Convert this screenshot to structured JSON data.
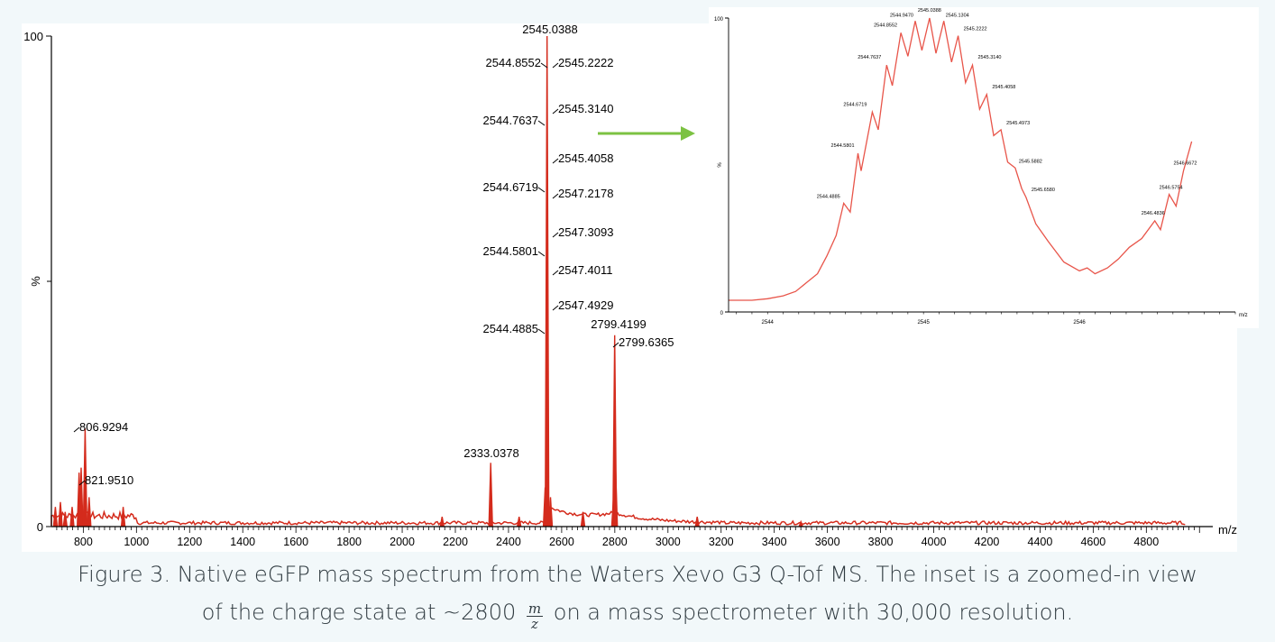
{
  "chart_data": [
    {
      "type": "line",
      "xlabel": "m/z",
      "ylabel": "%",
      "xlim": [
        680,
        5050
      ],
      "ylim": [
        0,
        100
      ],
      "xticks": [
        800,
        1000,
        1200,
        1400,
        1600,
        1800,
        2000,
        2200,
        2400,
        2600,
        2800,
        3000,
        3200,
        3400,
        3600,
        3800,
        4000,
        4200,
        4400,
        4600,
        4800
      ],
      "yticks": [
        0,
        100
      ],
      "color": "#d42b1c",
      "peaks": [
        {
          "x": 695,
          "y": 4
        },
        {
          "x": 714,
          "y": 5
        },
        {
          "x": 732,
          "y": 3
        },
        {
          "x": 758,
          "y": 4
        },
        {
          "x": 784,
          "y": 11
        },
        {
          "x": 792,
          "y": 12
        },
        {
          "x": 806.9294,
          "y": 20
        },
        {
          "x": 821.951,
          "y": 6
        },
        {
          "x": 950,
          "y": 4
        },
        {
          "x": 2150,
          "y": 2
        },
        {
          "x": 2333.0378,
          "y": 13
        },
        {
          "x": 2440,
          "y": 2
        },
        {
          "x": 2538,
          "y": 8
        },
        {
          "x": 2545.0388,
          "y": 100
        },
        {
          "x": 2558,
          "y": 6
        },
        {
          "x": 2680,
          "y": 3
        },
        {
          "x": 2795,
          "y": 6
        },
        {
          "x": 2799.4199,
          "y": 39
        },
        {
          "x": 2803,
          "y": 12
        },
        {
          "x": 3110,
          "y": 2
        },
        {
          "x": 3500,
          "y": 1
        }
      ],
      "peak_labels": [
        {
          "text": "806.9294",
          "x": 806.9294,
          "y": 20
        },
        {
          "text": "821.9510",
          "x": 821.951,
          "y": 6
        },
        {
          "text": "2333.0378",
          "x": 2333.0378,
          "y": 13
        },
        {
          "text": "2545.0388",
          "x": 2545.0388,
          "y": 100
        },
        {
          "text": "2544.8552",
          "x": 2545.0388,
          "y": 95
        },
        {
          "text": "2545.2222",
          "x": 2545.0388,
          "y": 95
        },
        {
          "text": "2544.7637",
          "x": 2545.0388,
          "y": 83
        },
        {
          "text": "2545.3140",
          "x": 2545.0388,
          "y": 85
        },
        {
          "text": "2545.4058",
          "x": 2545.0388,
          "y": 75
        },
        {
          "text": "2544.6719",
          "x": 2545.0388,
          "y": 70
        },
        {
          "text": "2547.2178",
          "x": 2545.0388,
          "y": 68
        },
        {
          "text": "2547.3093",
          "x": 2545.0388,
          "y": 61
        },
        {
          "text": "2544.5801",
          "x": 2545.0388,
          "y": 56
        },
        {
          "text": "2547.4011",
          "x": 2545.0388,
          "y": 52
        },
        {
          "text": "2547.4929",
          "x": 2545.0388,
          "y": 44
        },
        {
          "text": "2544.4885",
          "x": 2545.0388,
          "y": 40
        },
        {
          "text": "2799.4199",
          "x": 2799.4199,
          "y": 39
        },
        {
          "text": "2799.6365",
          "x": 2799.4199,
          "y": 39
        }
      ]
    },
    {
      "type": "line",
      "xlabel": "m/z",
      "ylabel": "%",
      "xlim": [
        2543.75,
        2547.0
      ],
      "ylim": [
        0,
        100
      ],
      "xticks": [
        2544,
        2545,
        2546
      ],
      "yticks": [
        0,
        100
      ],
      "color": "#e8554a",
      "x": [
        2543.75,
        2543.9,
        2544.0,
        2544.1,
        2544.18,
        2544.25,
        2544.32,
        2544.38,
        2544.44,
        2544.4885,
        2544.53,
        2544.58,
        2544.6,
        2544.6719,
        2544.71,
        2544.7637,
        2544.8,
        2544.8552,
        2544.9,
        2544.947,
        2544.99,
        2545.0388,
        2545.08,
        2545.1304,
        2545.18,
        2545.2222,
        2545.27,
        2545.314,
        2545.36,
        2545.4058,
        2545.45,
        2545.4973,
        2545.54,
        2545.5882,
        2545.63,
        2545.658,
        2545.72,
        2545.8,
        2545.9,
        2546.0,
        2546.05,
        2546.1,
        2546.18,
        2546.25,
        2546.32,
        2546.4,
        2546.4836,
        2546.52,
        2546.5754,
        2546.62,
        2546.6672,
        2546.72
      ],
      "y": [
        4,
        4,
        4.5,
        5.5,
        7,
        10,
        13,
        19,
        26,
        37,
        34,
        54,
        48,
        68,
        62,
        84,
        77,
        95,
        87,
        99,
        89,
        100,
        88,
        99,
        85,
        94,
        78,
        84,
        69,
        74,
        60,
        62,
        51,
        49,
        42,
        39,
        30,
        24,
        17,
        14,
        15,
        13,
        15,
        18,
        22,
        25,
        31,
        28,
        40,
        36,
        48,
        58
      ],
      "peak_labels": [
        {
          "text": "2544.9470",
          "x": 2544.947,
          "y": 99
        },
        {
          "text": "2545.0388",
          "x": 2545.0388,
          "y": 100
        },
        {
          "text": "2545.1304",
          "x": 2545.1304,
          "y": 99
        },
        {
          "text": "2544.8552",
          "x": 2544.8552,
          "y": 95
        },
        {
          "text": "2545.2222",
          "x": 2545.2222,
          "y": 94
        },
        {
          "text": "2545.3140",
          "x": 2545.314,
          "y": 84
        },
        {
          "text": "2544.7637",
          "x": 2544.7637,
          "y": 84
        },
        {
          "text": "2545.4058",
          "x": 2545.4058,
          "y": 74
        },
        {
          "text": "2544.6719",
          "x": 2544.6719,
          "y": 68
        },
        {
          "text": "2545.4973",
          "x": 2545.4973,
          "y": 62
        },
        {
          "text": "2544.5801",
          "x": 2544.58,
          "y": 54
        },
        {
          "text": "2545.5882",
          "x": 2545.5882,
          "y": 49
        },
        {
          "text": "2546.6672",
          "x": 2546.6672,
          "y": 48
        },
        {
          "text": "2544.4885",
          "x": 2544.4885,
          "y": 37
        },
        {
          "text": "2545.6580",
          "x": 2545.658,
          "y": 39
        },
        {
          "text": "2546.5754",
          "x": 2546.5754,
          "y": 40
        },
        {
          "text": "2546.4836",
          "x": 2546.4836,
          "y": 31
        }
      ]
    }
  ],
  "caption": {
    "line1": "Figure 3. Native eGFP mass spectrum from the Waters Xevo G3 Q-Tof MS. The inset is a zoomed-in view",
    "line2_before": "of the charge state at ~2800",
    "frac_num": "m",
    "frac_den": "z",
    "line2_after": "on a mass spectrometer with 30,000 resolution."
  },
  "colors": {
    "spectrum": "#d42b1c",
    "inset_spectrum": "#e8554a",
    "arrow": "#7cc242",
    "background": "#f2f8fa"
  }
}
